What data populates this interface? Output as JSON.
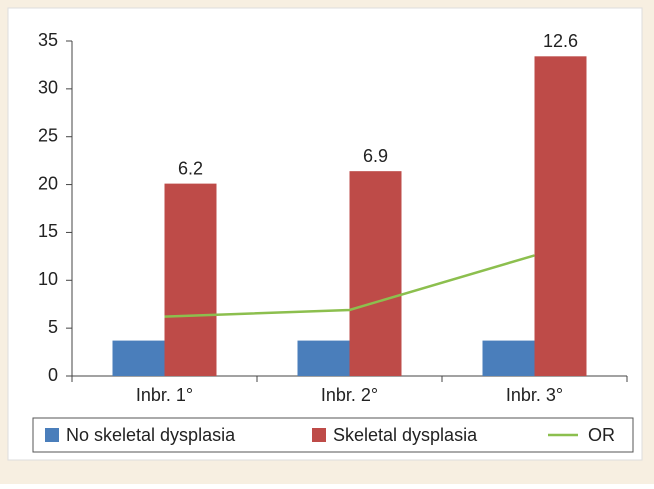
{
  "chart_data": {
    "type": "bar",
    "categories": [
      "Inbr. 1°",
      "Inbr. 2°",
      "Inbr. 3°"
    ],
    "series": [
      {
        "name": "No skeletal dysplasia",
        "color": "#4a7ebb",
        "values": [
          3.7,
          3.7,
          3.7
        ]
      },
      {
        "name": "Skeletal dysplasia",
        "color": "#be4b48",
        "values": [
          20.1,
          21.4,
          33.4
        ]
      },
      {
        "name": "OR",
        "color": "#8cbf4e",
        "type": "line",
        "values": [
          6.2,
          6.9,
          12.6
        ]
      }
    ],
    "ylim": [
      0,
      35
    ],
    "yticks": [
      0,
      5,
      10,
      15,
      20,
      25,
      30,
      35
    ],
    "grid": false,
    "legend": "bottom"
  }
}
